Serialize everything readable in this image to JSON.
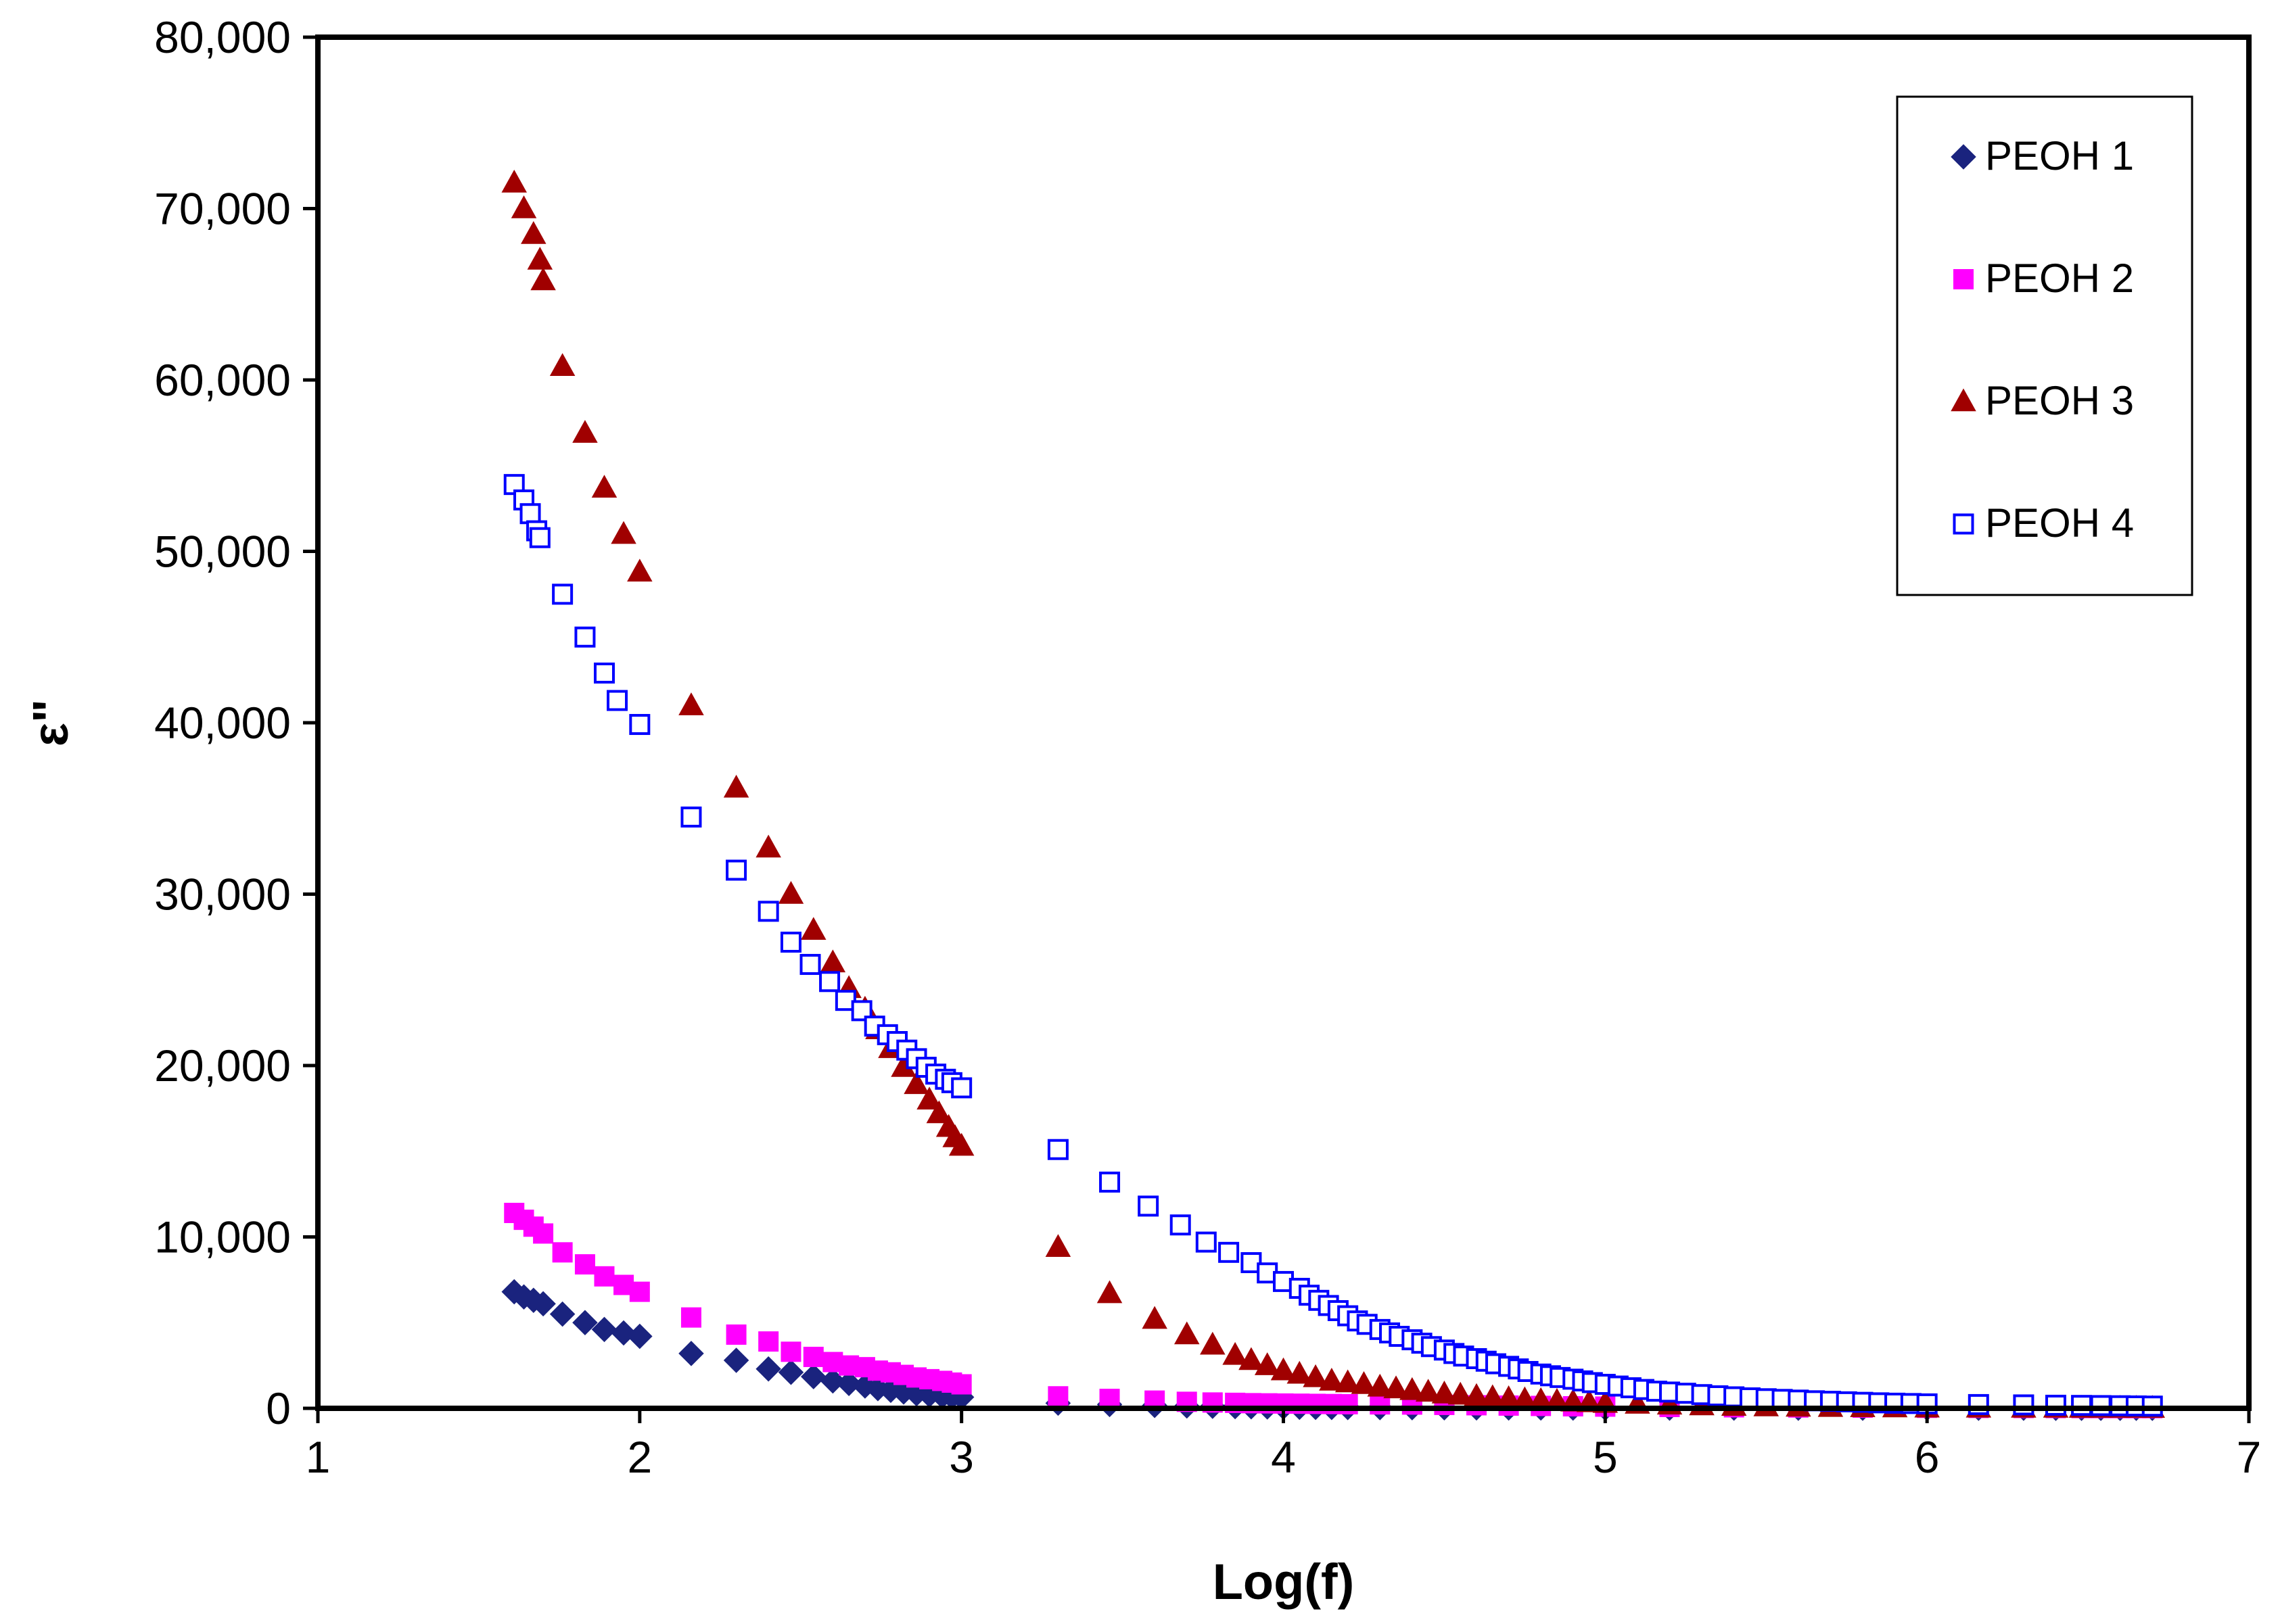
{
  "chart_data": {
    "type": "scatter",
    "title": "",
    "xlabel": "Log(f)",
    "ylabel": "ε\"",
    "xlim": [
      1,
      7
    ],
    "ylim": [
      0,
      80000
    ],
    "xticks": [
      1,
      2,
      3,
      4,
      5,
      6,
      7
    ],
    "xtick_labels": [
      "1",
      "2",
      "3",
      "4",
      "5",
      "6",
      "7"
    ],
    "yticks": [
      0,
      10000,
      20000,
      30000,
      40000,
      50000,
      60000,
      70000,
      80000
    ],
    "ytick_labels": [
      "0",
      "10,000",
      "20,000",
      "30,000",
      "40,000",
      "50,000",
      "60,000",
      "70,000",
      "80,000"
    ],
    "grid": false,
    "legend_position": "top-right",
    "series": [
      {
        "name": "PEOH 1",
        "marker": "diamond",
        "color": "#1a237e",
        "fill": true,
        "points": [
          [
            1.61,
            6800
          ],
          [
            1.64,
            6500
          ],
          [
            1.67,
            6300
          ],
          [
            1.7,
            6100
          ],
          [
            1.76,
            5500
          ],
          [
            1.83,
            5000
          ],
          [
            1.89,
            4600
          ],
          [
            1.95,
            4400
          ],
          [
            2,
            4200
          ],
          [
            2.16,
            3200
          ],
          [
            2.3,
            2800
          ],
          [
            2.4,
            2300
          ],
          [
            2.47,
            2100
          ],
          [
            2.54,
            1850
          ],
          [
            2.6,
            1600
          ],
          [
            2.65,
            1450
          ],
          [
            2.7,
            1300
          ],
          [
            2.74,
            1150
          ],
          [
            2.78,
            1050
          ],
          [
            2.82,
            950
          ],
          [
            2.86,
            850
          ],
          [
            2.9,
            780
          ],
          [
            2.94,
            720
          ],
          [
            2.97,
            680
          ],
          [
            3,
            650
          ],
          [
            3.3,
            300
          ],
          [
            3.46,
            220
          ],
          [
            3.6,
            170
          ],
          [
            3.7,
            140
          ],
          [
            3.78,
            120
          ],
          [
            3.85,
            100
          ],
          [
            3.9,
            90
          ],
          [
            3.95,
            80
          ],
          [
            4,
            70
          ],
          [
            4.05,
            60
          ],
          [
            4.1,
            55
          ],
          [
            4.15,
            50
          ],
          [
            4.2,
            45
          ],
          [
            4.3,
            40
          ],
          [
            4.4,
            35
          ],
          [
            4.5,
            30
          ],
          [
            4.6,
            25
          ],
          [
            4.7,
            20
          ],
          [
            4.8,
            18
          ],
          [
            4.9,
            15
          ],
          [
            5,
            12
          ],
          [
            5.2,
            10
          ],
          [
            5.4,
            8
          ],
          [
            5.6,
            6
          ],
          [
            5.8,
            5
          ],
          [
            6,
            4
          ],
          [
            6.16,
            3
          ],
          [
            6.3,
            3
          ],
          [
            6.4,
            2
          ],
          [
            6.48,
            2
          ],
          [
            6.54,
            2
          ],
          [
            6.6,
            2
          ],
          [
            6.65,
            2
          ],
          [
            6.7,
            2
          ]
        ]
      },
      {
        "name": "PEOH 2",
        "marker": "square",
        "color": "#ff00ff",
        "fill": true,
        "points": [
          [
            1.61,
            11400
          ],
          [
            1.64,
            11000
          ],
          [
            1.67,
            10600
          ],
          [
            1.7,
            10200
          ],
          [
            1.76,
            9100
          ],
          [
            1.83,
            8400
          ],
          [
            1.89,
            7700
          ],
          [
            1.95,
            7200
          ],
          [
            2,
            6800
          ],
          [
            2.16,
            5300
          ],
          [
            2.3,
            4300
          ],
          [
            2.4,
            3900
          ],
          [
            2.47,
            3300
          ],
          [
            2.54,
            3000
          ],
          [
            2.6,
            2700
          ],
          [
            2.65,
            2500
          ],
          [
            2.7,
            2400
          ],
          [
            2.74,
            2200
          ],
          [
            2.78,
            2100
          ],
          [
            2.82,
            1950
          ],
          [
            2.86,
            1800
          ],
          [
            2.9,
            1700
          ],
          [
            2.94,
            1600
          ],
          [
            2.97,
            1500
          ],
          [
            3,
            1400
          ],
          [
            3.3,
            700
          ],
          [
            3.46,
            550
          ],
          [
            3.6,
            450
          ],
          [
            3.7,
            380
          ],
          [
            3.78,
            340
          ],
          [
            3.85,
            320
          ],
          [
            3.9,
            300
          ],
          [
            3.95,
            290
          ],
          [
            4,
            280
          ],
          [
            4.05,
            270
          ],
          [
            4.1,
            260
          ],
          [
            4.15,
            250
          ],
          [
            4.2,
            240
          ],
          [
            4.3,
            230
          ],
          [
            4.4,
            220
          ],
          [
            4.5,
            200
          ],
          [
            4.6,
            180
          ],
          [
            4.7,
            160
          ],
          [
            4.8,
            140
          ],
          [
            4.9,
            120
          ],
          [
            5,
            100
          ],
          [
            5.2,
            80
          ],
          [
            5.4,
            60
          ],
          [
            5.6,
            50
          ],
          [
            5.8,
            40
          ],
          [
            6,
            30
          ],
          [
            6.16,
            25
          ],
          [
            6.3,
            20
          ],
          [
            6.4,
            18
          ],
          [
            6.48,
            16
          ],
          [
            6.54,
            15
          ],
          [
            6.6,
            14
          ],
          [
            6.65,
            13
          ],
          [
            6.7,
            12
          ]
        ]
      },
      {
        "name": "PEOH 3",
        "marker": "triangle",
        "color": "#a00000",
        "fill": true,
        "points": [
          [
            1.61,
            71500
          ],
          [
            1.64,
            70000
          ],
          [
            1.67,
            68500
          ],
          [
            1.69,
            67000
          ],
          [
            1.7,
            65800
          ],
          [
            1.76,
            60800
          ],
          [
            1.83,
            56900
          ],
          [
            1.89,
            53700
          ],
          [
            1.95,
            51000
          ],
          [
            2,
            48800
          ],
          [
            2.16,
            41000
          ],
          [
            2.3,
            36200
          ],
          [
            2.4,
            32700
          ],
          [
            2.47,
            30000
          ],
          [
            2.54,
            27900
          ],
          [
            2.6,
            26000
          ],
          [
            2.65,
            24500
          ],
          [
            2.7,
            23300
          ],
          [
            2.74,
            22100
          ],
          [
            2.78,
            21000
          ],
          [
            2.82,
            19900
          ],
          [
            2.86,
            18900
          ],
          [
            2.9,
            18000
          ],
          [
            2.93,
            17200
          ],
          [
            2.96,
            16400
          ],
          [
            2.98,
            15800
          ],
          [
            3,
            15300
          ],
          [
            3.3,
            9400
          ],
          [
            3.46,
            6700
          ],
          [
            3.6,
            5200
          ],
          [
            3.7,
            4300
          ],
          [
            3.78,
            3700
          ],
          [
            3.85,
            3100
          ],
          [
            3.9,
            2800
          ],
          [
            3.95,
            2500
          ],
          [
            4,
            2200
          ],
          [
            4.05,
            2000
          ],
          [
            4.1,
            1800
          ],
          [
            4.15,
            1600
          ],
          [
            4.2,
            1500
          ],
          [
            4.25,
            1400
          ],
          [
            4.3,
            1250
          ],
          [
            4.35,
            1150
          ],
          [
            4.4,
            1050
          ],
          [
            4.45,
            950
          ],
          [
            4.5,
            850
          ],
          [
            4.55,
            780
          ],
          [
            4.6,
            700
          ],
          [
            4.65,
            630
          ],
          [
            4.7,
            570
          ],
          [
            4.75,
            510
          ],
          [
            4.8,
            460
          ],
          [
            4.85,
            420
          ],
          [
            4.9,
            380
          ],
          [
            4.95,
            340
          ],
          [
            5,
            300
          ],
          [
            5.1,
            250
          ],
          [
            5.2,
            200
          ],
          [
            5.3,
            160
          ],
          [
            5.4,
            130
          ],
          [
            5.5,
            100
          ],
          [
            5.6,
            80
          ],
          [
            5.7,
            65
          ],
          [
            5.8,
            50
          ],
          [
            5.9,
            40
          ],
          [
            6,
            30
          ],
          [
            6.16,
            25
          ],
          [
            6.3,
            20
          ],
          [
            6.4,
            18
          ],
          [
            6.48,
            16
          ],
          [
            6.54,
            15
          ],
          [
            6.6,
            14
          ],
          [
            6.65,
            13
          ],
          [
            6.7,
            12
          ]
        ]
      },
      {
        "name": "PEOH 4",
        "marker": "square",
        "color": "#0000ff",
        "fill": false,
        "points": [
          [
            1.61,
            53900
          ],
          [
            1.64,
            53000
          ],
          [
            1.66,
            52200
          ],
          [
            1.68,
            51200
          ],
          [
            1.69,
            50800
          ],
          [
            1.76,
            47500
          ],
          [
            1.83,
            45000
          ],
          [
            1.89,
            42900
          ],
          [
            1.93,
            41300
          ],
          [
            2,
            39900
          ],
          [
            2.16,
            34500
          ],
          [
            2.3,
            31400
          ],
          [
            2.4,
            29000
          ],
          [
            2.47,
            27200
          ],
          [
            2.53,
            25900
          ],
          [
            2.59,
            24900
          ],
          [
            2.64,
            23800
          ],
          [
            2.69,
            23200
          ],
          [
            2.73,
            22300
          ],
          [
            2.77,
            21800
          ],
          [
            2.8,
            21400
          ],
          [
            2.83,
            20900
          ],
          [
            2.86,
            20400
          ],
          [
            2.89,
            19900
          ],
          [
            2.92,
            19500
          ],
          [
            2.95,
            19200
          ],
          [
            2.97,
            19000
          ],
          [
            3,
            18700
          ],
          [
            3.3,
            15100
          ],
          [
            3.46,
            13200
          ],
          [
            3.58,
            11800
          ],
          [
            3.68,
            10700
          ],
          [
            3.76,
            9700
          ],
          [
            3.83,
            9100
          ],
          [
            3.9,
            8500
          ],
          [
            3.95,
            7900
          ],
          [
            4,
            7400
          ],
          [
            4.05,
            7000
          ],
          [
            4.08,
            6600
          ],
          [
            4.11,
            6300
          ],
          [
            4.14,
            6000
          ],
          [
            4.17,
            5700
          ],
          [
            4.2,
            5400
          ],
          [
            4.23,
            5100
          ],
          [
            4.26,
            4900
          ],
          [
            4.3,
            4600
          ],
          [
            4.33,
            4400
          ],
          [
            4.36,
            4200
          ],
          [
            4.4,
            4000
          ],
          [
            4.43,
            3800
          ],
          [
            4.46,
            3600
          ],
          [
            4.5,
            3400
          ],
          [
            4.53,
            3200
          ],
          [
            4.56,
            3050
          ],
          [
            4.6,
            2900
          ],
          [
            4.63,
            2750
          ],
          [
            4.66,
            2600
          ],
          [
            4.7,
            2450
          ],
          [
            4.73,
            2300
          ],
          [
            4.76,
            2150
          ],
          [
            4.8,
            2000
          ],
          [
            4.83,
            1900
          ],
          [
            4.86,
            1800
          ],
          [
            4.9,
            1700
          ],
          [
            4.93,
            1600
          ],
          [
            4.96,
            1500
          ],
          [
            5,
            1400
          ],
          [
            5.04,
            1300
          ],
          [
            5.08,
            1200
          ],
          [
            5.12,
            1100
          ],
          [
            5.16,
            1000
          ],
          [
            5.2,
            950
          ],
          [
            5.25,
            880
          ],
          [
            5.3,
            800
          ],
          [
            5.35,
            730
          ],
          [
            5.4,
            670
          ],
          [
            5.45,
            610
          ],
          [
            5.5,
            560
          ],
          [
            5.55,
            520
          ],
          [
            5.6,
            480
          ],
          [
            5.65,
            440
          ],
          [
            5.7,
            410
          ],
          [
            5.75,
            380
          ],
          [
            5.8,
            350
          ],
          [
            5.85,
            320
          ],
          [
            5.9,
            300
          ],
          [
            5.95,
            280
          ],
          [
            6,
            260
          ],
          [
            6.16,
            220
          ],
          [
            6.3,
            200
          ],
          [
            6.4,
            180
          ],
          [
            6.48,
            170
          ],
          [
            6.54,
            160
          ],
          [
            6.6,
            150
          ],
          [
            6.65,
            140
          ],
          [
            6.7,
            130
          ]
        ]
      }
    ]
  }
}
